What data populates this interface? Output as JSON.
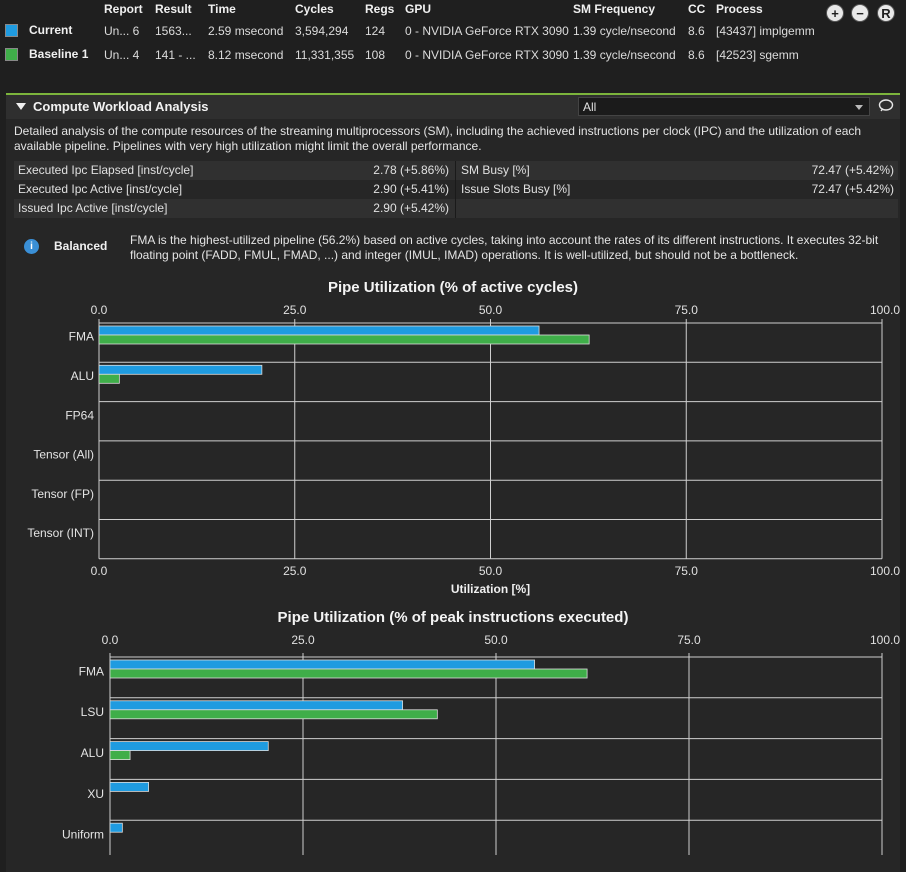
{
  "results": {
    "headers": [
      "Report",
      "Result",
      "Time",
      "Cycles",
      "Regs",
      "GPU",
      "SM Frequency",
      "CC",
      "Process"
    ],
    "rows": [
      {
        "label": "Current",
        "report": "Un... 6",
        "result": "1563...",
        "time": "2.59 msecond",
        "cycles": "3,594,294",
        "regs": "124",
        "gpu": "0 - NVIDIA GeForce RTX 3090",
        "sm_freq": "1.39 cycle/nsecond",
        "cc": "8.6",
        "process": "[43437] implgemm",
        "color": "#1f9be0"
      },
      {
        "label": "Baseline 1",
        "report": "Un... 4",
        "result": "141 - ...",
        "time": "8.12 msecond",
        "cycles": "11,331,355",
        "regs": "108",
        "gpu": "0 - NVIDIA GeForce RTX 3090",
        "sm_freq": "1.39 cycle/nsecond",
        "cc": "8.6",
        "process": "[42523] sgemm",
        "color": "#3fae49"
      }
    ],
    "icons": [
      "plus-circle-icon",
      "minus-circle-icon",
      "r-circle-icon"
    ],
    "icon_glyphs": {
      "plus": "+",
      "minus": "−",
      "r": "R"
    }
  },
  "section": {
    "title": "Compute Workload Analysis",
    "filter_value": "All",
    "description": "Detailed analysis of the compute resources of the streaming multiprocessors (SM), including the achieved instructions per clock (IPC) and the utilization of each available pipeline. Pipelines with very high utilization might limit the overall performance.",
    "metrics_left": [
      {
        "name": "Executed Ipc Elapsed [inst/cycle]",
        "value": "2.78  (+5.86%)"
      },
      {
        "name": "Executed Ipc Active [inst/cycle]",
        "value": "2.90  (+5.41%)"
      },
      {
        "name": "Issued Ipc Active [inst/cycle]",
        "value": "2.90  (+5.42%)"
      }
    ],
    "metrics_right": [
      {
        "name": "SM Busy [%]",
        "value": "72.47  (+5.42%)"
      },
      {
        "name": "Issue Slots Busy [%]",
        "value": "72.47  (+5.42%)"
      }
    ],
    "rule": {
      "icon_glyph": "i",
      "kind": "Balanced",
      "text": "FMA is the highest-utilized pipeline (56.2%) based on active cycles, taking into account the rates of its different instructions. It executes 32-bit floating point (FADD, FMUL, FMAD, ...) and integer (IMUL, IMAD) operations. It is well-utilized, but should not be a bottleneck."
    }
  },
  "chart_data": [
    {
      "type": "bar",
      "orientation": "horizontal",
      "title": "Pipe Utilization (% of active cycles)",
      "xlabel": "Utilization [%]",
      "xlim": [
        0,
        100
      ],
      "ticks": [
        "0.0",
        "25.0",
        "50.0",
        "75.0",
        "100.0"
      ],
      "categories": [
        "FMA",
        "ALU",
        "FP64",
        "Tensor (All)",
        "Tensor (FP)",
        "Tensor (INT)"
      ],
      "series": [
        {
          "name": "Current",
          "color": "#1f9be0",
          "values": [
            56.2,
            20.8,
            0,
            0,
            0,
            0
          ]
        },
        {
          "name": "Baseline 1",
          "color": "#3fae49",
          "values": [
            62.6,
            2.6,
            0,
            0,
            0,
            0
          ]
        }
      ]
    },
    {
      "type": "bar",
      "orientation": "horizontal",
      "title": "Pipe Utilization (% of peak instructions executed)",
      "xlabel": "",
      "xlim": [
        0,
        100
      ],
      "ticks": [
        "0.0",
        "25.0",
        "50.0",
        "75.0",
        "100.0"
      ],
      "categories": [
        "FMA",
        "LSU",
        "ALU",
        "XU",
        "Uniform"
      ],
      "series": [
        {
          "name": "Current",
          "color": "#1f9be0",
          "values": [
            55.0,
            37.9,
            20.5,
            5.0,
            1.6
          ]
        },
        {
          "name": "Baseline 1",
          "color": "#3fae49",
          "values": [
            61.8,
            42.4,
            2.6,
            0,
            0
          ]
        }
      ]
    }
  ]
}
